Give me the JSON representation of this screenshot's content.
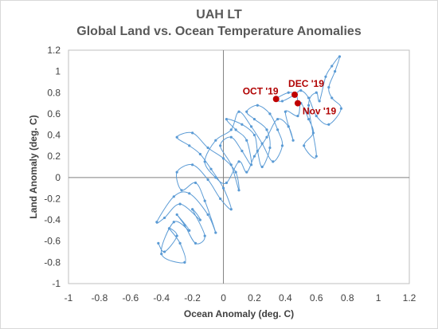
{
  "chart_data": {
    "type": "scatter",
    "title": "UAH LT",
    "subtitle": "Global Land vs. Ocean Temperature Anomalies",
    "xlabel": "Ocean Anomaly (deg. C)",
    "ylabel": "Land Anomaly (deg. C)",
    "xlim": [
      -1,
      1.2
    ],
    "ylim": [
      -1,
      1.2
    ],
    "x_ticks": [
      -1,
      -0.8,
      -0.6,
      -0.4,
      -0.2,
      0,
      0.2,
      0.4,
      0.6,
      0.8,
      1,
      1.2
    ],
    "y_ticks": [
      -1,
      -0.8,
      -0.6,
      -0.4,
      -0.2,
      0,
      0.2,
      0.4,
      0.6,
      0.8,
      1,
      1.2
    ],
    "x_tick_labels": [
      "-1",
      "-0.8",
      "-0.6",
      "-0.4",
      "-0.2",
      "0",
      "0.2",
      "0.4",
      "0.6",
      "0.8",
      "1",
      "1.2"
    ],
    "y_tick_labels": [
      "-1",
      "-0.8",
      "-0.6",
      "-0.4",
      "-0.2",
      "0",
      "0.2",
      "0.4",
      "0.6",
      "0.8",
      "1",
      "1.2"
    ],
    "grid": false,
    "zero_lines": true,
    "series_color": "#5b9bd5",
    "highlight_color": "#c00000",
    "series": [
      {
        "values": [
          [
            -0.42,
            -0.62
          ],
          [
            -0.38,
            -0.7
          ],
          [
            -0.3,
            -0.55
          ],
          [
            -0.35,
            -0.48
          ],
          [
            -0.28,
            -0.62
          ],
          [
            -0.25,
            -0.8
          ],
          [
            -0.4,
            -0.72
          ],
          [
            -0.32,
            -0.42
          ],
          [
            -0.22,
            -0.5
          ],
          [
            -0.3,
            -0.35
          ],
          [
            -0.25,
            -0.45
          ],
          [
            -0.18,
            -0.62
          ],
          [
            -0.12,
            -0.55
          ],
          [
            -0.2,
            -0.3
          ],
          [
            -0.15,
            -0.4
          ],
          [
            -0.28,
            -0.25
          ],
          [
            -0.38,
            -0.38
          ],
          [
            -0.43,
            -0.42
          ],
          [
            -0.32,
            -0.18
          ],
          [
            -0.22,
            -0.15
          ],
          [
            -0.1,
            -0.35
          ],
          [
            -0.05,
            -0.52
          ],
          [
            -0.12,
            -0.22
          ],
          [
            -0.18,
            -0.05
          ],
          [
            -0.27,
            -0.12
          ],
          [
            -0.3,
            0.05
          ],
          [
            -0.2,
            0.12
          ],
          [
            -0.1,
            -0.02
          ],
          [
            -0.02,
            -0.2
          ],
          [
            0.05,
            -0.3
          ],
          [
            0.0,
            -0.1
          ],
          [
            -0.08,
            0.08
          ],
          [
            -0.15,
            0.22
          ],
          [
            -0.22,
            0.3
          ],
          [
            -0.3,
            0.38
          ],
          [
            -0.2,
            0.42
          ],
          [
            -0.1,
            0.28
          ],
          [
            0.0,
            0.18
          ],
          [
            0.08,
            0.05
          ],
          [
            0.1,
            -0.12
          ],
          [
            0.05,
            0.12
          ],
          [
            -0.02,
            0.3
          ],
          [
            0.05,
            0.38
          ],
          [
            0.12,
            0.25
          ],
          [
            0.18,
            0.12
          ],
          [
            0.15,
            0.35
          ],
          [
            0.08,
            0.45
          ],
          [
            0.02,
            0.55
          ],
          [
            0.12,
            0.5
          ],
          [
            0.2,
            0.4
          ],
          [
            0.22,
            0.25
          ],
          [
            0.25,
            0.1
          ],
          [
            0.3,
            0.28
          ],
          [
            0.28,
            0.45
          ],
          [
            0.2,
            0.55
          ],
          [
            0.15,
            0.62
          ],
          [
            0.22,
            0.68
          ],
          [
            0.3,
            0.6
          ],
          [
            0.35,
            0.45
          ],
          [
            0.38,
            0.3
          ],
          [
            0.32,
            0.15
          ],
          [
            0.25,
            0.32
          ],
          [
            0.18,
            0.48
          ],
          [
            0.1,
            0.62
          ],
          [
            0.05,
            0.45
          ],
          [
            -0.05,
            0.35
          ],
          [
            -0.12,
            0.15
          ],
          [
            -0.05,
            0.0
          ],
          [
            0.02,
            -0.05
          ],
          [
            0.1,
            0.15
          ],
          [
            0.15,
            0.05
          ],
          [
            0.2,
            0.2
          ],
          [
            0.28,
            0.38
          ],
          [
            0.35,
            0.55
          ],
          [
            0.42,
            0.48
          ],
          [
            0.45,
            0.35
          ],
          [
            0.4,
            0.62
          ],
          [
            0.48,
            0.58
          ],
          [
            0.5,
            0.7
          ],
          [
            0.55,
            0.55
          ],
          [
            0.58,
            0.42
          ],
          [
            0.52,
            0.3
          ],
          [
            0.6,
            0.2
          ],
          [
            0.55,
            0.68
          ],
          [
            0.6,
            0.8
          ],
          [
            0.62,
            0.72
          ],
          [
            0.66,
            0.95
          ],
          [
            0.7,
            1.05
          ],
          [
            0.75,
            1.14
          ],
          [
            0.72,
            1.0
          ],
          [
            0.68,
            0.85
          ],
          [
            0.7,
            0.75
          ],
          [
            0.76,
            0.65
          ],
          [
            0.68,
            0.5
          ],
          [
            0.6,
            0.58
          ],
          [
            0.55,
            0.75
          ],
          [
            0.5,
            0.82
          ],
          [
            0.46,
            0.78
          ],
          [
            0.38,
            0.72
          ],
          [
            0.34,
            0.74
          ],
          [
            0.42,
            0.8
          ],
          [
            0.47,
            0.78
          ],
          [
            0.48,
            0.7
          ]
        ]
      }
    ],
    "annotations": [
      {
        "label": "OCT '19",
        "x": 0.34,
        "y": 0.74
      },
      {
        "label": "DEC '19",
        "x": 0.46,
        "y": 0.78
      },
      {
        "label": "Nov '19",
        "x": 0.48,
        "y": 0.7
      }
    ]
  }
}
